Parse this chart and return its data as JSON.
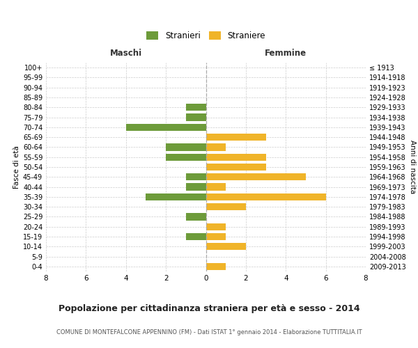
{
  "age_groups": [
    "0-4",
    "5-9",
    "10-14",
    "15-19",
    "20-24",
    "25-29",
    "30-34",
    "35-39",
    "40-44",
    "45-49",
    "50-54",
    "55-59",
    "60-64",
    "65-69",
    "70-74",
    "75-79",
    "80-84",
    "85-89",
    "90-94",
    "95-99",
    "100+"
  ],
  "birth_years": [
    "2009-2013",
    "2004-2008",
    "1999-2003",
    "1994-1998",
    "1989-1993",
    "1984-1988",
    "1979-1983",
    "1974-1978",
    "1969-1973",
    "1964-1968",
    "1959-1963",
    "1954-1958",
    "1949-1953",
    "1944-1948",
    "1939-1943",
    "1934-1938",
    "1929-1933",
    "1924-1928",
    "1919-1923",
    "1914-1918",
    "≤ 1913"
  ],
  "maschi": [
    0,
    0,
    0,
    1,
    0,
    1,
    0,
    3,
    1,
    1,
    0,
    2,
    2,
    0,
    4,
    1,
    1,
    0,
    0,
    0,
    0
  ],
  "femmine": [
    1,
    0,
    2,
    1,
    1,
    0,
    2,
    6,
    1,
    5,
    3,
    3,
    1,
    3,
    0,
    0,
    0,
    0,
    0,
    0,
    0
  ],
  "maschi_color": "#6d9b3a",
  "femmine_color": "#f0b429",
  "background_color": "#ffffff",
  "grid_color": "#cccccc",
  "title": "Popolazione per cittadinanza straniera per età e sesso - 2014",
  "subtitle": "COMUNE DI MONTEFALCONE APPENNINO (FM) - Dati ISTAT 1° gennaio 2014 - Elaborazione TUTTITALIA.IT",
  "xlabel_left": "Maschi",
  "xlabel_right": "Femmine",
  "ylabel_left": "Fasce di età",
  "ylabel_right": "Anni di nascita",
  "legend_stranieri": "Stranieri",
  "legend_straniere": "Straniere",
  "xlim": 8,
  "bar_height": 0.72
}
